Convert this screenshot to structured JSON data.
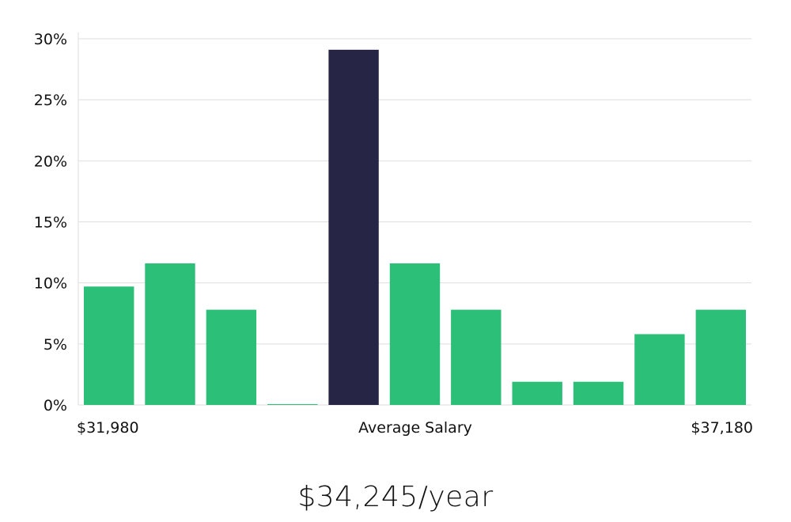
{
  "chart_data": {
    "type": "bar",
    "categories": [
      "1",
      "2",
      "3",
      "4",
      "5",
      "6",
      "7",
      "8",
      "9",
      "10",
      "11"
    ],
    "values": [
      9.7,
      11.6,
      7.8,
      0.05,
      29.1,
      11.6,
      7.8,
      1.9,
      1.9,
      5.8,
      7.8
    ],
    "highlight_index": 4,
    "ylim": [
      0,
      30
    ],
    "y_ticks": [
      "0%",
      "5%",
      "10%",
      "15%",
      "20%",
      "25%",
      "30%"
    ],
    "x_labels": {
      "left": "$31,980",
      "center": "Average Salary",
      "right": "$37,180"
    },
    "grid": true,
    "colors": {
      "bar": "#2bbf78",
      "highlight": "#272546",
      "grid": "#dedede"
    }
  },
  "summary": {
    "average_salary_text": "$34,245/year"
  }
}
